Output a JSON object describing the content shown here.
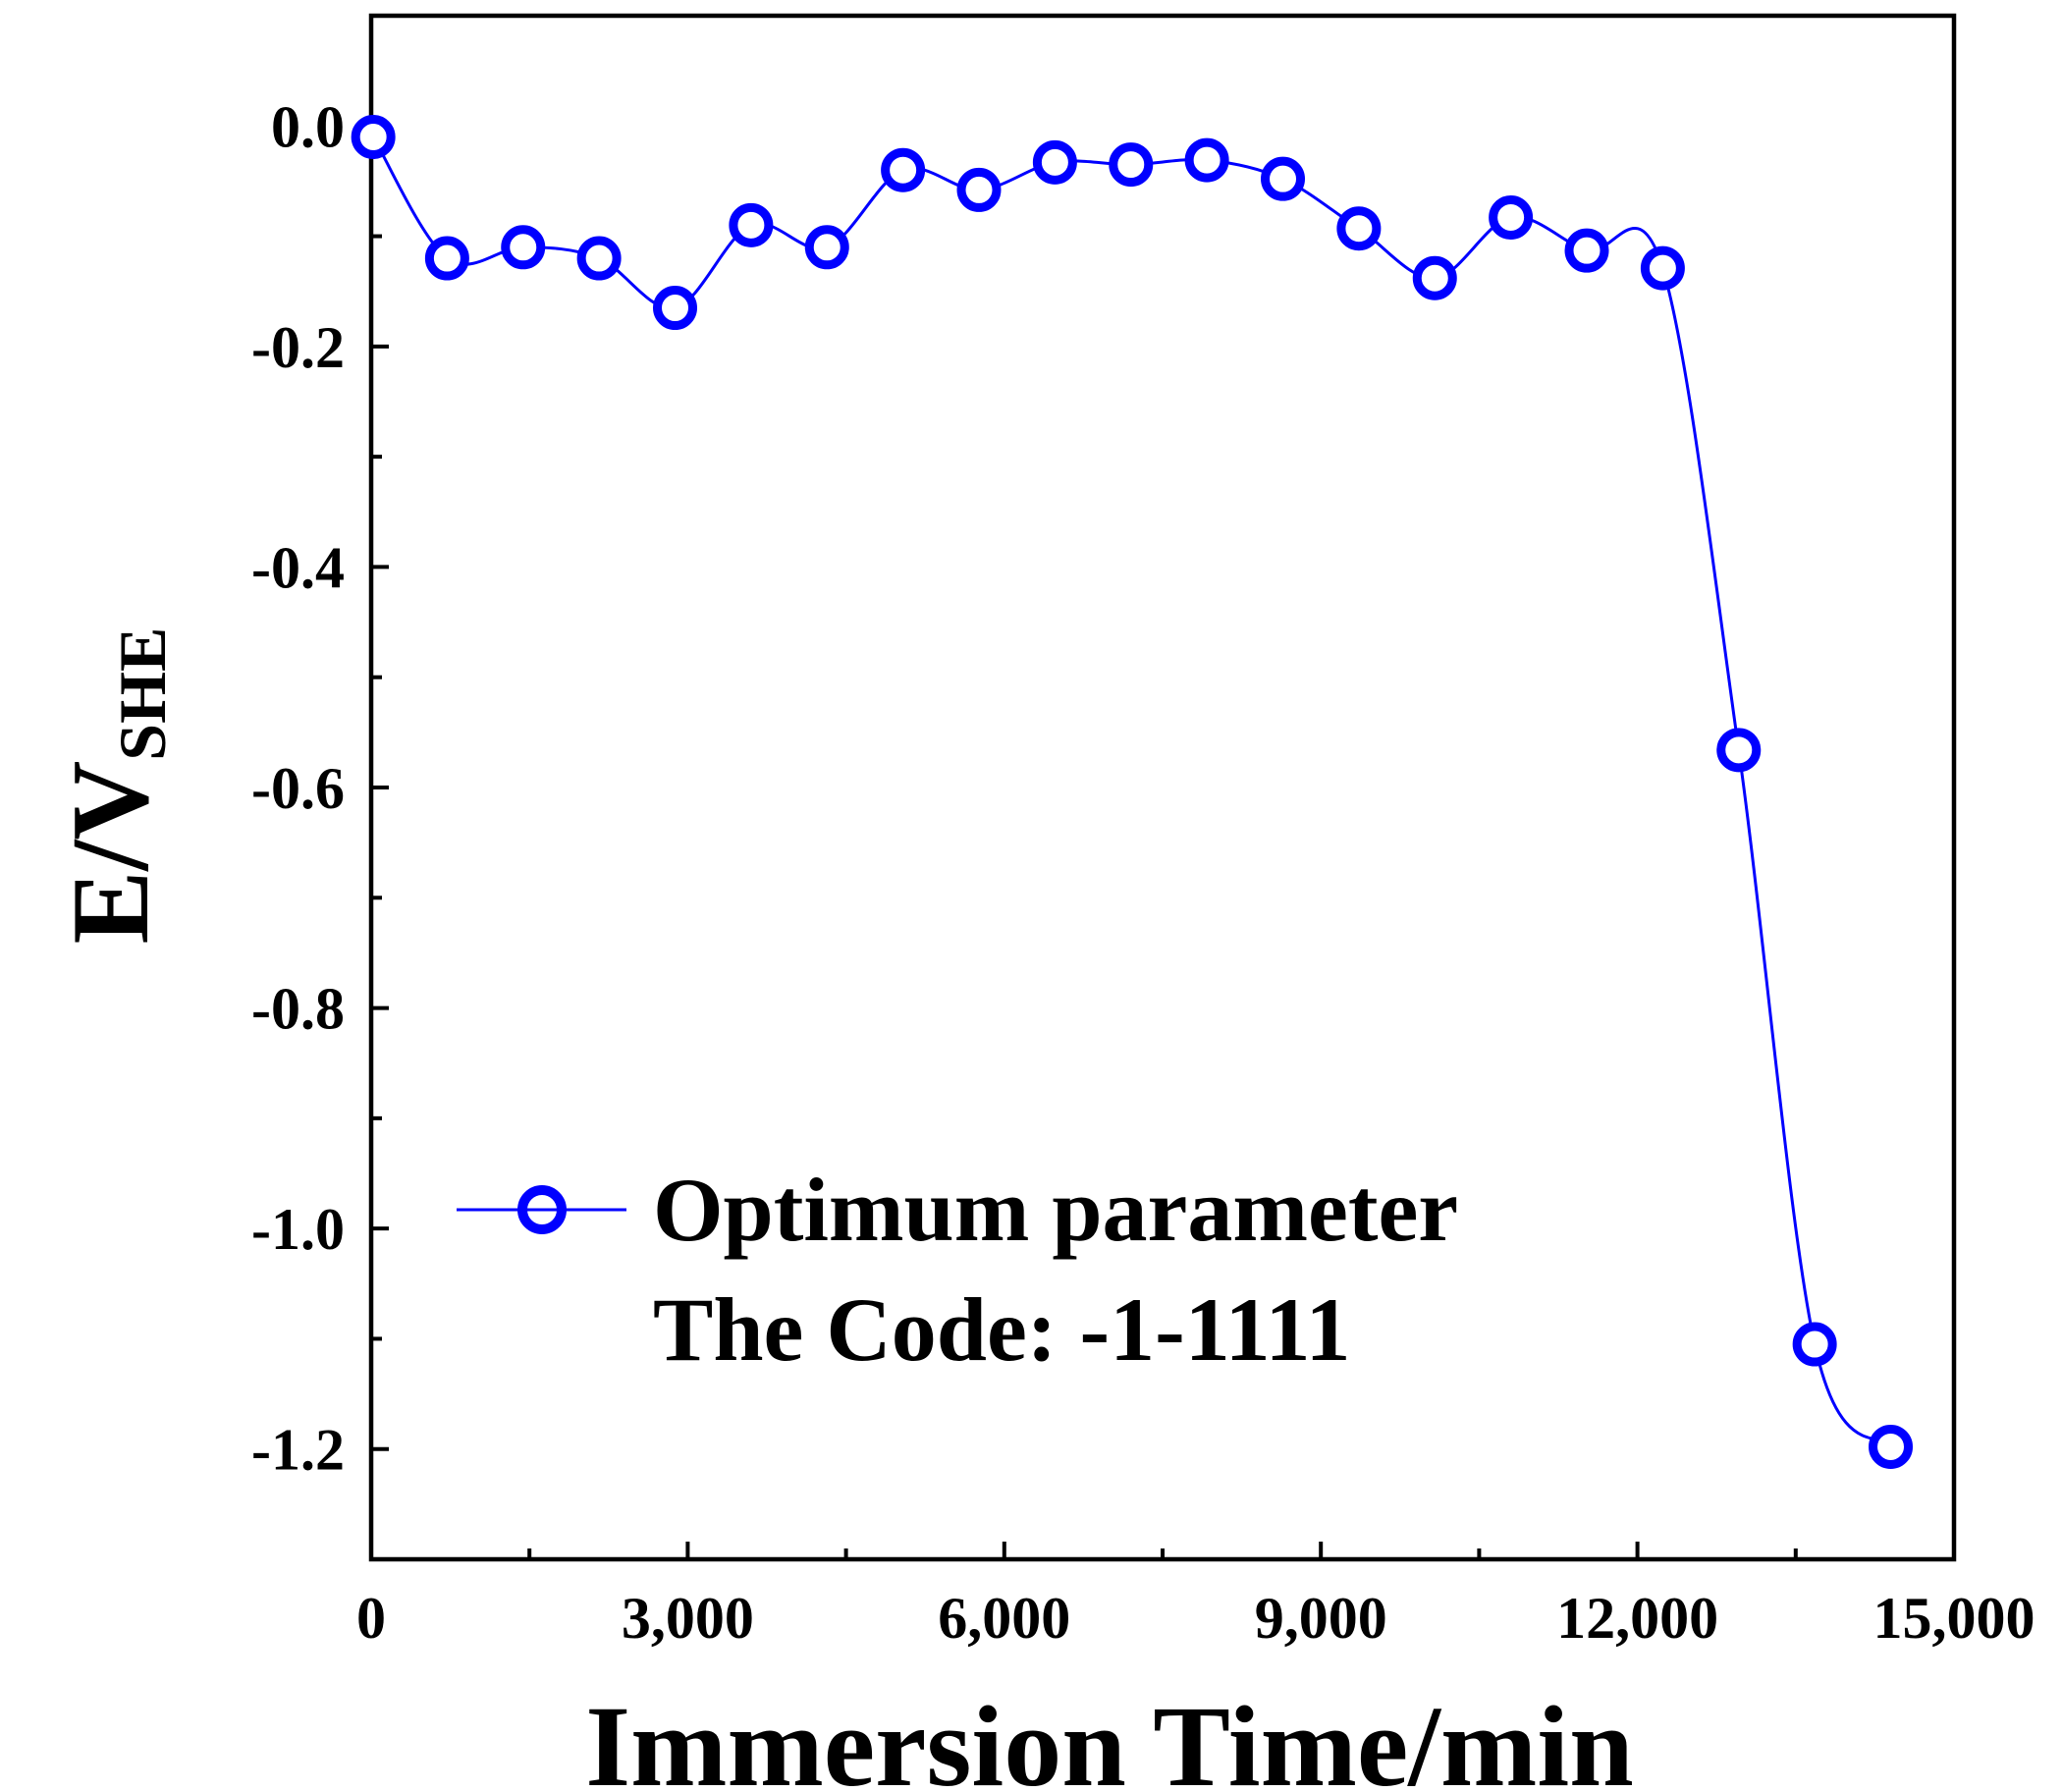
{
  "chart_data": {
    "type": "line",
    "xlabel": "Immersion Time/min",
    "ylabel_main": "E/V",
    "ylabel_sub": "SHE",
    "xlim": [
      0,
      15000
    ],
    "ylim": [
      -1.3,
      0.1
    ],
    "xticks": [
      0,
      3000,
      6000,
      9000,
      12000,
      15000
    ],
    "xtick_labels": [
      "0",
      "3,000",
      "6,000",
      "9,000",
      "12,000",
      "15,000"
    ],
    "yticks": [
      0.0,
      -0.2,
      -0.4,
      -0.6,
      -0.8,
      -1.0,
      -1.2
    ],
    "ytick_labels": [
      "0.0",
      "-0.2",
      "-0.4",
      "-0.6",
      "-0.8",
      "-1.0",
      "-1.2"
    ],
    "series": [
      {
        "name": "Optimum parameter",
        "color": "#0000ff",
        "marker": "open-circle",
        "x": [
          20,
          720,
          1440,
          2160,
          2880,
          3600,
          4320,
          5040,
          5760,
          6480,
          7200,
          7920,
          8640,
          9360,
          10080,
          10800,
          11520,
          12240,
          12960,
          13680,
          14400
        ],
        "y": [
          -0.01,
          -0.12,
          -0.11,
          -0.12,
          -0.165,
          -0.09,
          -0.11,
          -0.04,
          -0.058,
          -0.033,
          -0.035,
          -0.031,
          -0.048,
          -0.093,
          -0.138,
          -0.083,
          -0.113,
          -0.129,
          -0.566,
          -1.105,
          -1.198
        ]
      }
    ],
    "legend_position": "bottom-left",
    "annotation": "The Code: -1-1111"
  }
}
